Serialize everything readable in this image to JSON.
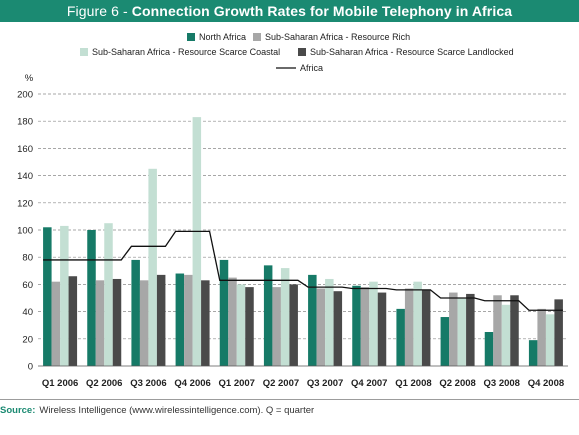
{
  "header": {
    "prefix": "Figure 6 -",
    "title": "Connection Growth Rates for Mobile Telephony in Africa"
  },
  "source": {
    "label": "Source:",
    "text": "Wireless Intelligence (www.wirelessintelligence.com). Q = quarter"
  },
  "colors": {
    "header_bg": "#1b8a72",
    "north_africa": "#167a67",
    "resource_rich": "#a7a7a7",
    "coastal": "#c3dfd3",
    "landlocked": "#4a4a4a",
    "africa_line": "#111111"
  },
  "chart_data": {
    "type": "bar",
    "title": "Connection Growth Rates for Mobile Telephony in Africa",
    "ylabel": "%",
    "xlabel": "",
    "ylim": [
      0,
      200
    ],
    "yticks": [
      0,
      20,
      40,
      60,
      80,
      100,
      120,
      140,
      160,
      180,
      200
    ],
    "grid": "horizontal dashed",
    "legend_position": "top",
    "categories": [
      "Q1 2006",
      "Q2 2006",
      "Q3 2006",
      "Q4 2006",
      "Q1 2007",
      "Q2 2007",
      "Q3 2007",
      "Q4 2007",
      "Q1 2008",
      "Q2 2008",
      "Q3 2008",
      "Q4 2008"
    ],
    "series": [
      {
        "name": "North Africa",
        "kind": "bar",
        "color": "#167a67",
        "values": [
          102,
          100,
          78,
          68,
          78,
          74,
          67,
          59,
          42,
          36,
          25,
          19
        ]
      },
      {
        "name": "Sub-Saharan Africa - Resource Rich",
        "kind": "bar",
        "color": "#a7a7a7",
        "values": [
          62,
          63,
          63,
          67,
          65,
          58,
          57,
          58,
          57,
          54,
          52,
          42
        ]
      },
      {
        "name": "Sub-Saharan Africa - Resource Scarce Coastal",
        "kind": "bar",
        "color": "#c3dfd3",
        "values": [
          103,
          105,
          145,
          183,
          60,
          72,
          64,
          62,
          62,
          50,
          45,
          38
        ]
      },
      {
        "name": "Sub-Saharan Africa - Resource Scarce Landlocked",
        "kind": "bar",
        "color": "#4a4a4a",
        "values": [
          66,
          64,
          67,
          63,
          58,
          60,
          55,
          54,
          56,
          53,
          52,
          49
        ]
      },
      {
        "name": "Africa",
        "kind": "line",
        "color": "#111111",
        "values": [
          78,
          78,
          88,
          99,
          63,
          63,
          58,
          57,
          56,
          50,
          48,
          41
        ]
      }
    ]
  }
}
